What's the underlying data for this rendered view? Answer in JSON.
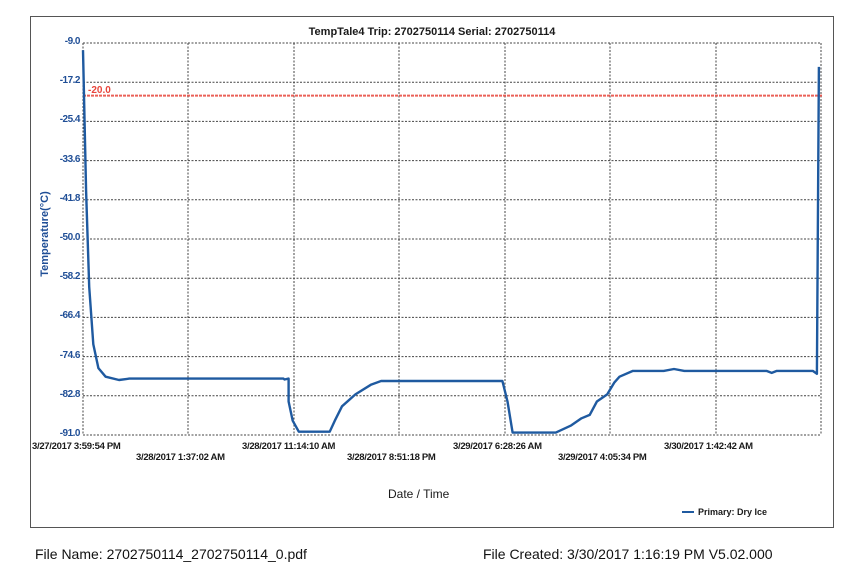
{
  "chart_data": {
    "type": "line",
    "title": "TempTale4  Trip: 2702750114  Serial: 2702750114",
    "xlabel": "Date / Time",
    "ylabel": "Temperature(°C)",
    "ylim": [
      -91.0,
      -9.0
    ],
    "yticks": [
      "-9.0",
      "-17.2",
      "-25.4",
      "-33.6",
      "-41.8",
      "-50.0",
      "-58.2",
      "-66.4",
      "-74.6",
      "-82.8",
      "-91.0"
    ],
    "xticks": [
      "3/27/2017 3:59:54 PM",
      "3/28/2017 1:37:02 AM",
      "3/28/2017 11:14:10 AM",
      "3/28/2017 8:51:18 PM",
      "3/29/2017 6:28:26 AM",
      "3/29/2017 4:05:34 PM",
      "3/30/2017 1:42:42 AM"
    ],
    "grid": true,
    "legend_position": "bottom-right",
    "threshold": {
      "value": -20.0,
      "label": "-20.0",
      "color": "#e8463c"
    },
    "series": [
      {
        "name": "Primary: Dry Ice",
        "color": "#1f5aa0",
        "points_hours_temp": [
          [
            0.0,
            -10.5
          ],
          [
            0.3,
            -40
          ],
          [
            0.6,
            -60
          ],
          [
            1.0,
            -72
          ],
          [
            1.5,
            -77
          ],
          [
            2.2,
            -78.8
          ],
          [
            3.5,
            -79.5
          ],
          [
            4.5,
            -79.2
          ],
          [
            10,
            -79.2
          ],
          [
            20,
            -79.2
          ],
          [
            19.5,
            -79.2
          ],
          [
            19.6,
            -79.4
          ],
          [
            20.0,
            -84
          ],
          [
            20.4,
            -88
          ],
          [
            21.0,
            -90.3
          ],
          [
            24.0,
            -90.3
          ],
          [
            24.5,
            -88
          ],
          [
            25.2,
            -85
          ],
          [
            26.5,
            -82.5
          ],
          [
            28.0,
            -80.5
          ],
          [
            29.0,
            -79.7
          ],
          [
            40.8,
            -79.7
          ],
          [
            41.3,
            -84
          ],
          [
            41.8,
            -90.5
          ],
          [
            46.0,
            -90.5
          ],
          [
            47.5,
            -89
          ],
          [
            48.5,
            -87.5
          ],
          [
            49.3,
            -86.8
          ],
          [
            50.0,
            -84
          ],
          [
            51.0,
            -82.5
          ],
          [
            51.7,
            -80
          ],
          [
            52.2,
            -78.8
          ],
          [
            53.5,
            -77.6
          ],
          [
            56.5,
            -77.6
          ],
          [
            57.5,
            -77.2
          ],
          [
            58.5,
            -77.6
          ],
          [
            66.5,
            -77.6
          ],
          [
            67.0,
            -78.0
          ],
          [
            67.5,
            -77.6
          ],
          [
            71.0,
            -77.6
          ],
          [
            71.4,
            -78.2
          ],
          [
            71.6,
            -14
          ]
        ]
      }
    ]
  },
  "legend": {
    "label": "Primary: Dry Ice"
  },
  "footer": {
    "file_name": "File Name: 2702750114_2702750114_0.pdf",
    "file_created": "File Created: 3/30/2017 1:16:19 PM  V5.02.000"
  }
}
